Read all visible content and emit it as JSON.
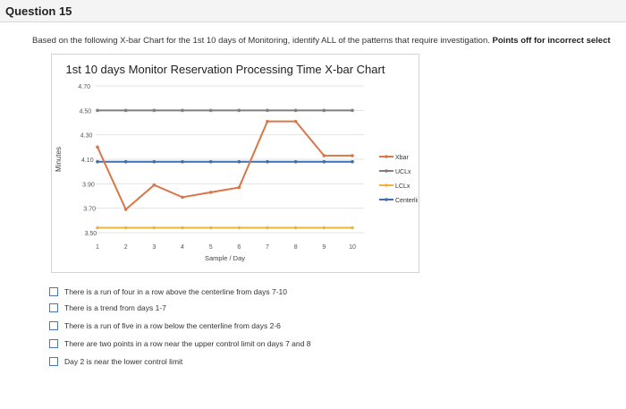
{
  "question": {
    "title": "Question 15"
  },
  "instructions": {
    "text": "Based on the following X-bar Chart for the 1st 10 days of Monitoring, identify ALL of the patterns that require investigation.",
    "bold_text": "Points off for incorrect select"
  },
  "options": [
    "There is a run of four in a row above the centerline from days 7-10",
    "There is a trend from days 1-7",
    "There is a run of five in a row below the centerline from days 2-6",
    "There are two points in a row near the upper control limit on days 7 and 8",
    "Day 2 is near the lower control limit"
  ],
  "colors": {
    "xbar": "#d9774a",
    "ucl": "#7f7f7f",
    "lcl": "#f0b43a",
    "centerline": "#3f6fb3"
  },
  "chart_data": {
    "type": "line",
    "title": "1st 10 days Monitor Reservation Processing Time X-bar Chart",
    "xlabel": "Sample / Day",
    "ylabel": "Minutes",
    "x": [
      1,
      2,
      3,
      4,
      5,
      6,
      7,
      8,
      9,
      10
    ],
    "y_ticks": [
      "4.70",
      "4.50",
      "4.30",
      "4.10",
      "3.90",
      "3.70",
      "3.50"
    ],
    "ylim": [
      3.5,
      4.7
    ],
    "grid": "horizontal",
    "legend_position": "right",
    "series": [
      {
        "name": "Xbar",
        "color": "#d9774a",
        "values": [
          4.2,
          3.69,
          3.89,
          3.79,
          3.83,
          3.87,
          4.41,
          4.41,
          4.13,
          4.13
        ]
      },
      {
        "name": "UCLx",
        "color": "#7f7f7f",
        "values": [
          4.5,
          4.5,
          4.5,
          4.5,
          4.5,
          4.5,
          4.5,
          4.5,
          4.5,
          4.5
        ]
      },
      {
        "name": "LCLx",
        "color": "#f0b43a",
        "values": [
          3.54,
          3.54,
          3.54,
          3.54,
          3.54,
          3.54,
          3.54,
          3.54,
          3.54,
          3.54
        ]
      },
      {
        "name": "Centerline",
        "color": "#3f6fb3",
        "values": [
          4.08,
          4.08,
          4.08,
          4.08,
          4.08,
          4.08,
          4.08,
          4.08,
          4.08,
          4.08
        ]
      }
    ]
  }
}
